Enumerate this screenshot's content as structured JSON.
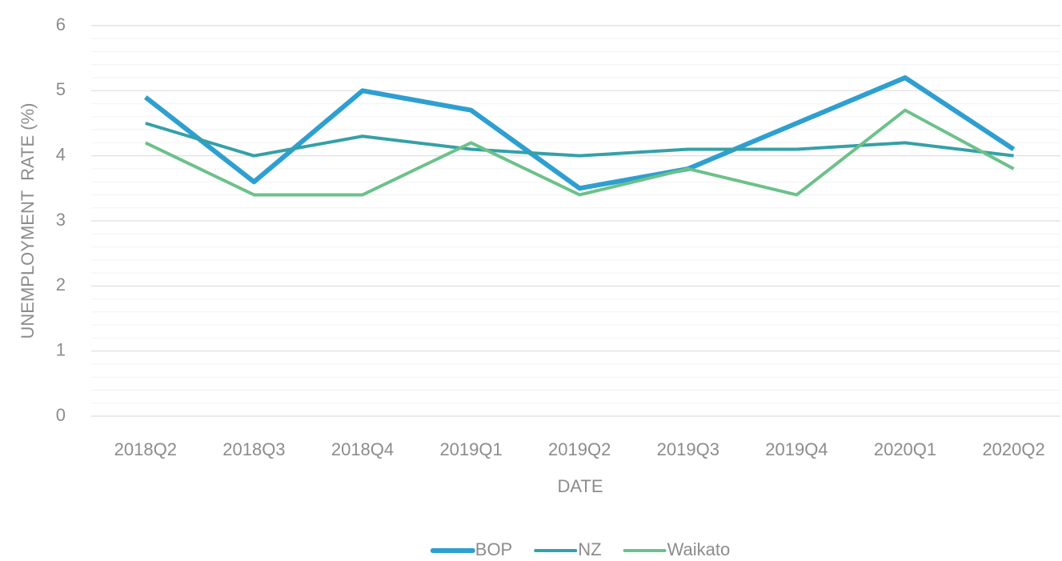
{
  "chart_data": {
    "type": "line",
    "x_label": "DATE",
    "y_label": "UNEMPLOYMENT  RATE (%)",
    "categories": [
      "2018Q2",
      "2018Q3",
      "2018Q4",
      "2019Q1",
      "2019Q2",
      "2019Q3",
      "2019Q4",
      "2020Q1",
      "2020Q2"
    ],
    "series": [
      {
        "name": "BOP",
        "color": "#2e9fd0",
        "values": [
          4.9,
          3.6,
          5.0,
          4.7,
          3.5,
          3.8,
          4.5,
          5.2,
          4.1
        ]
      },
      {
        "name": "NZ",
        "color": "#35a0a8",
        "values": [
          4.5,
          4.0,
          4.3,
          4.1,
          4.0,
          4.1,
          4.1,
          4.2,
          4.0
        ]
      },
      {
        "name": "Waikato",
        "color": "#6cc18a",
        "values": [
          4.2,
          3.4,
          3.4,
          4.2,
          3.4,
          3.8,
          3.4,
          4.7,
          3.8
        ]
      }
    ],
    "ylim": [
      0,
      6
    ],
    "yticks": [
      0,
      1,
      2,
      3,
      4,
      5,
      6
    ],
    "minor_yticks": [
      0.2,
      0.4,
      0.6,
      0.8,
      1.2,
      1.4,
      1.6,
      1.8,
      2.2,
      2.4,
      2.6,
      2.8,
      3.2,
      3.4,
      3.6,
      3.8,
      4.2,
      4.4,
      4.6,
      4.8,
      5.2,
      5.4,
      5.6,
      5.8
    ],
    "grid": true,
    "legend": "bottom"
  }
}
